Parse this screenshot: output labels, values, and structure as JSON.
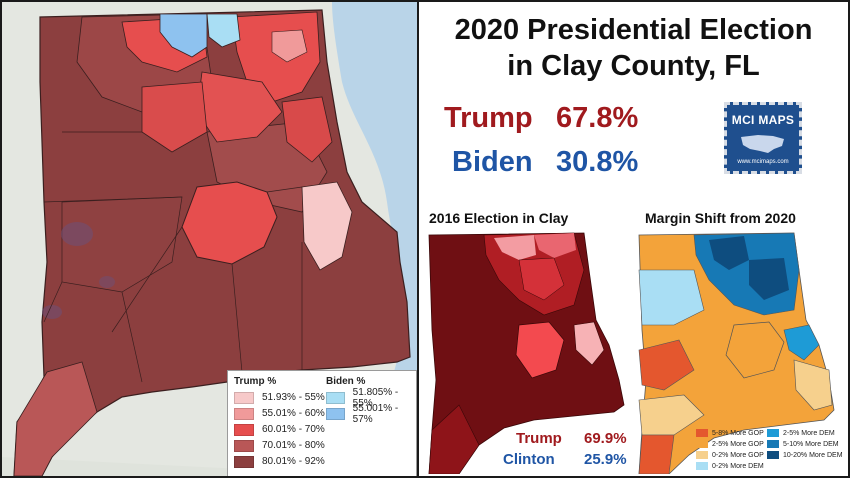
{
  "title_line1": "2020 Presidential Election",
  "title_line2": "in Clay County, FL",
  "results_2020": [
    {
      "name": "Trump",
      "pct": "67.8%",
      "color": "#a01a1e"
    },
    {
      "name": "Biden",
      "pct": "30.8%",
      "color": "#1f55a5"
    }
  ],
  "badge": {
    "name": "MCI MAPS",
    "url": "www.mcimaps.com"
  },
  "map2016": {
    "title": "2016 Election in Clay",
    "results": [
      {
        "name": "Trump",
        "pct": "69.9%",
        "color": "#a01a1e"
      },
      {
        "name": "Clinton",
        "pct": "25.9%",
        "color": "#1f55a5"
      }
    ]
  },
  "shift": {
    "title": "Margin Shift from 2020",
    "legend": [
      {
        "label": "5-8% More GOP",
        "color": "#e4572e"
      },
      {
        "label": "2-5% More DEM",
        "color": "#1e9bd6"
      },
      {
        "label": "2-5% More GOP",
        "color": "#f3a33a"
      },
      {
        "label": "5-10% More DEM",
        "color": "#1779b5"
      },
      {
        "label": "0-2% More GOP",
        "color": "#f6d08d"
      },
      {
        "label": "10-20% More DEM",
        "color": "#0e4d7f"
      },
      {
        "label": "0-2% More DEM",
        "color": "#a9def4"
      }
    ]
  },
  "legend": {
    "trump_header": "Trump %",
    "biden_header": "Biden %",
    "trump": [
      {
        "label": "51.93% - 55%",
        "color": "#f7c9c9"
      },
      {
        "label": "55.01% - 60%",
        "color": "#f09a9a"
      },
      {
        "label": "60.01% - 70%",
        "color": "#e64e4e"
      },
      {
        "label": "70.01% - 80%",
        "color": "#b95757"
      },
      {
        "label": "80.01% - 92%",
        "color": "#8c3f3f"
      }
    ],
    "biden": [
      {
        "label": "51.805% - 55%",
        "color": "#a9def4"
      },
      {
        "label": "55.001% - 57%",
        "color": "#8ec2ef"
      }
    ]
  },
  "colors": {
    "r80": "#8c3f3f",
    "r70": "#b95757",
    "r60": "#e64e4e",
    "r55": "#f09a9a",
    "r51": "#f7c9c9",
    "water": "#b9d4e8"
  }
}
